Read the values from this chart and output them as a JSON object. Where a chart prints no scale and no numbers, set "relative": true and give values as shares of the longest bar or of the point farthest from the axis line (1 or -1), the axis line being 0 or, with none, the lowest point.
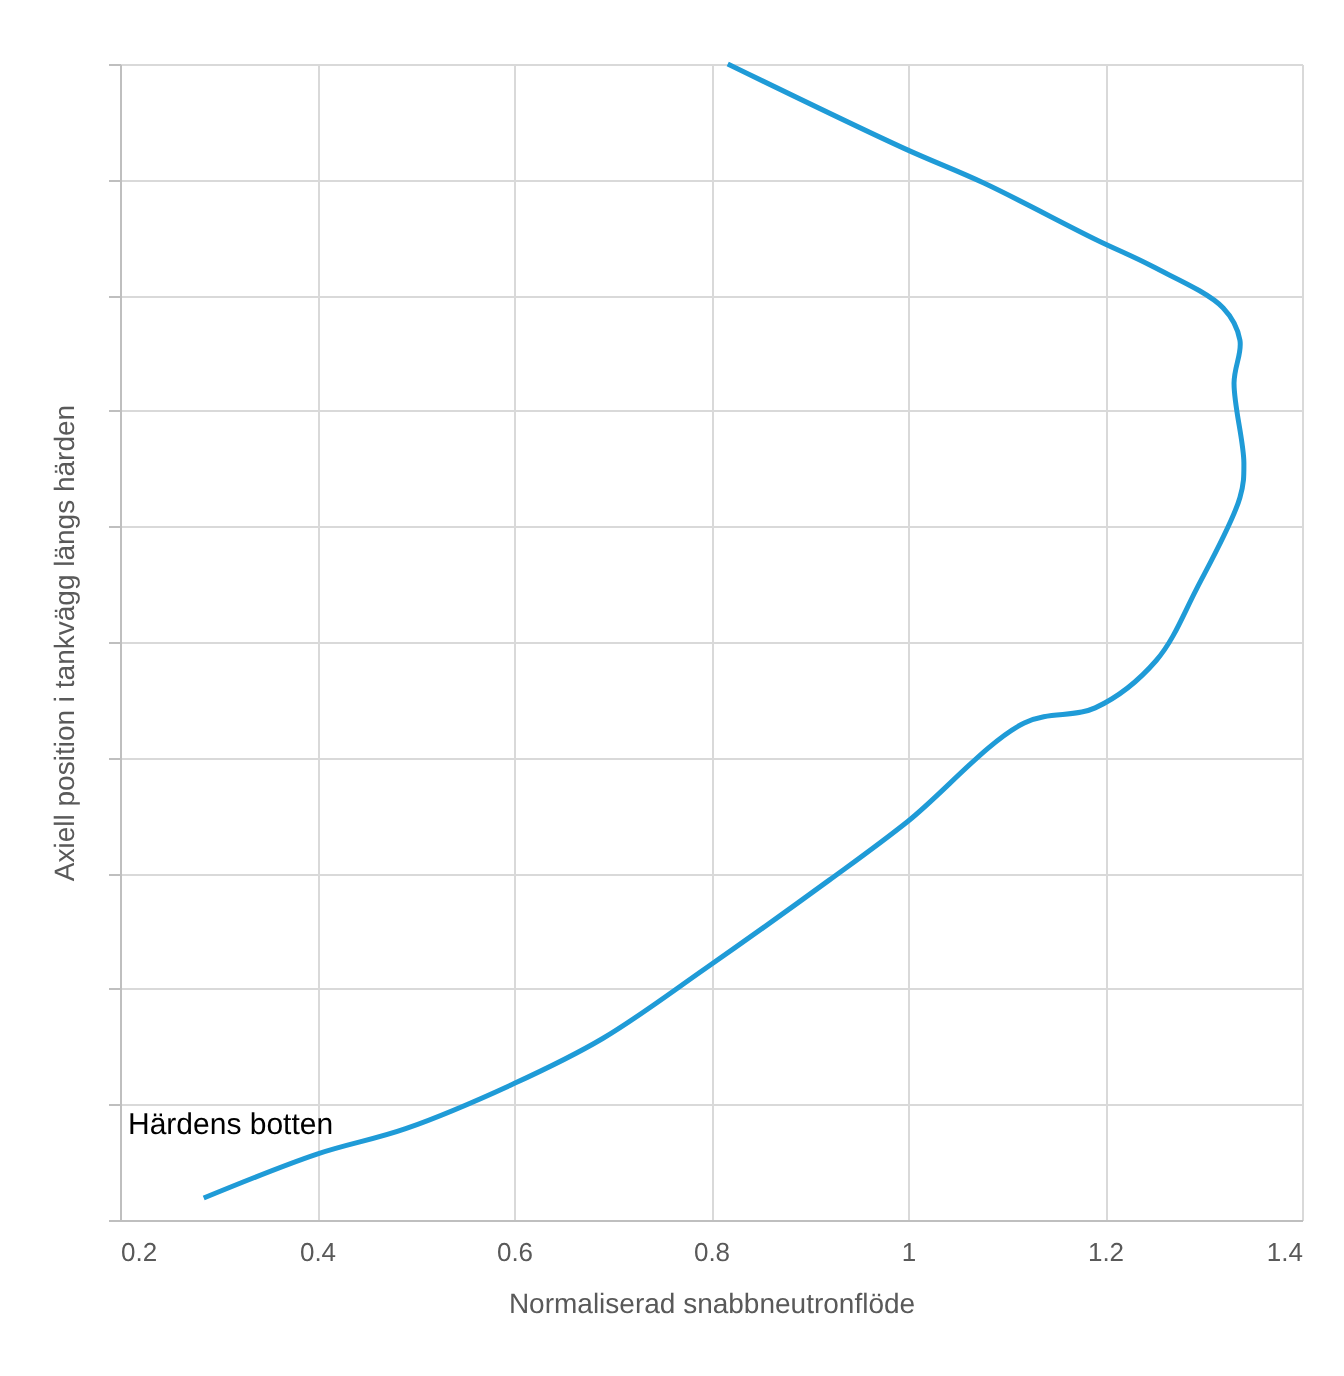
{
  "chart_data": {
    "type": "line",
    "xlabel": "Normaliserad snabbneutronflöde",
    "ylabel": "Axiell position i tankvägg längs härden",
    "annotations": [
      "Härdens botten"
    ],
    "relative": true,
    "series": [
      {
        "color": "#1f9bd7",
        "x": [
          0.285,
          0.4,
          0.49,
          0.6,
          0.69,
          0.795,
          0.92,
          1.0,
          1.118,
          1.19,
          1.252,
          1.293,
          1.337,
          1.341,
          1.331,
          1.337,
          1.32,
          1.248,
          1.191,
          1.077,
          0.996,
          0.817
        ],
        "values": [
          0.019,
          0.057,
          0.079,
          0.118,
          0.157,
          0.218,
          0.294,
          0.345,
          0.43,
          0.443,
          0.484,
          0.546,
          0.625,
          0.655,
          0.724,
          0.761,
          0.789,
          0.825,
          0.848,
          0.897,
          0.927,
          1
        ]
      }
    ],
    "xlim": [
      0.2,
      1.4
    ],
    "xticks": [
      0.2,
      0.4,
      0.6,
      0.8,
      1,
      1.2,
      1.4
    ],
    "tick_labels": "x",
    "grid": true,
    "marker": "none",
    "line_style": "solid"
  }
}
